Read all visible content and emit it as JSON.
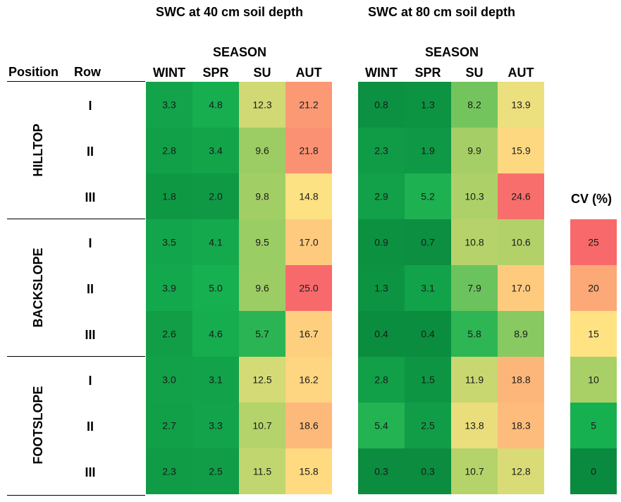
{
  "chart_data": {
    "type": "heatmap",
    "title_40": "SWC at 40 cm soil depth",
    "title_80": "SWC at 80 cm soil depth",
    "season_label": "SEASON",
    "position_header": "Position",
    "row_header": "Row",
    "seasons": [
      "WINT",
      "SPR",
      "SU",
      "AUT"
    ],
    "positions": [
      "HILLTOP",
      "BACKSLOPE",
      "FOOTSLOPE"
    ],
    "rows": [
      "I",
      "II",
      "III",
      "I",
      "II",
      "III",
      "I",
      "II",
      "III"
    ],
    "values_40": [
      [
        "3.3",
        "4.8",
        "12.3",
        "21.2"
      ],
      [
        "2.8",
        "3.4",
        "9.6",
        "21.8"
      ],
      [
        "1.8",
        "2.0",
        "9.8",
        "14.8"
      ],
      [
        "3.5",
        "4.1",
        "9.5",
        "17.0"
      ],
      [
        "3.9",
        "5.0",
        "9.6",
        "25.0"
      ],
      [
        "2.6",
        "4.6",
        "5.7",
        "16.7"
      ],
      [
        "3.0",
        "3.1",
        "12.5",
        "16.2"
      ],
      [
        "2.7",
        "3.3",
        "10.7",
        "18.6"
      ],
      [
        "2.3",
        "2.5",
        "11.5",
        "15.8"
      ]
    ],
    "values_80": [
      [
        "0.8",
        "1.3",
        "8.2",
        "13.9"
      ],
      [
        "2.3",
        "1.9",
        "9.9",
        "15.9"
      ],
      [
        "2.9",
        "5.2",
        "10.3",
        "24.6"
      ],
      [
        "0.9",
        "0.7",
        "10.8",
        "10.6"
      ],
      [
        "1.3",
        "3.1",
        "7.9",
        "17.0"
      ],
      [
        "0.4",
        "0.4",
        "5.8",
        "8.9"
      ],
      [
        "2.8",
        "1.5",
        "11.9",
        "18.8"
      ],
      [
        "5.4",
        "2.5",
        "13.8",
        "18.3"
      ],
      [
        "0.3",
        "0.3",
        "10.7",
        "12.8"
      ]
    ],
    "legend_title": "CV (%)",
    "legend_values": [
      "25",
      "20",
      "15",
      "10",
      "5",
      "0"
    ],
    "color_scale": {
      "min": 0,
      "max": 25,
      "stops": [
        "#0a8a3e",
        "#17b050",
        "#a8d066",
        "#ffe383",
        "#fca877",
        "#f8696b"
      ]
    }
  }
}
